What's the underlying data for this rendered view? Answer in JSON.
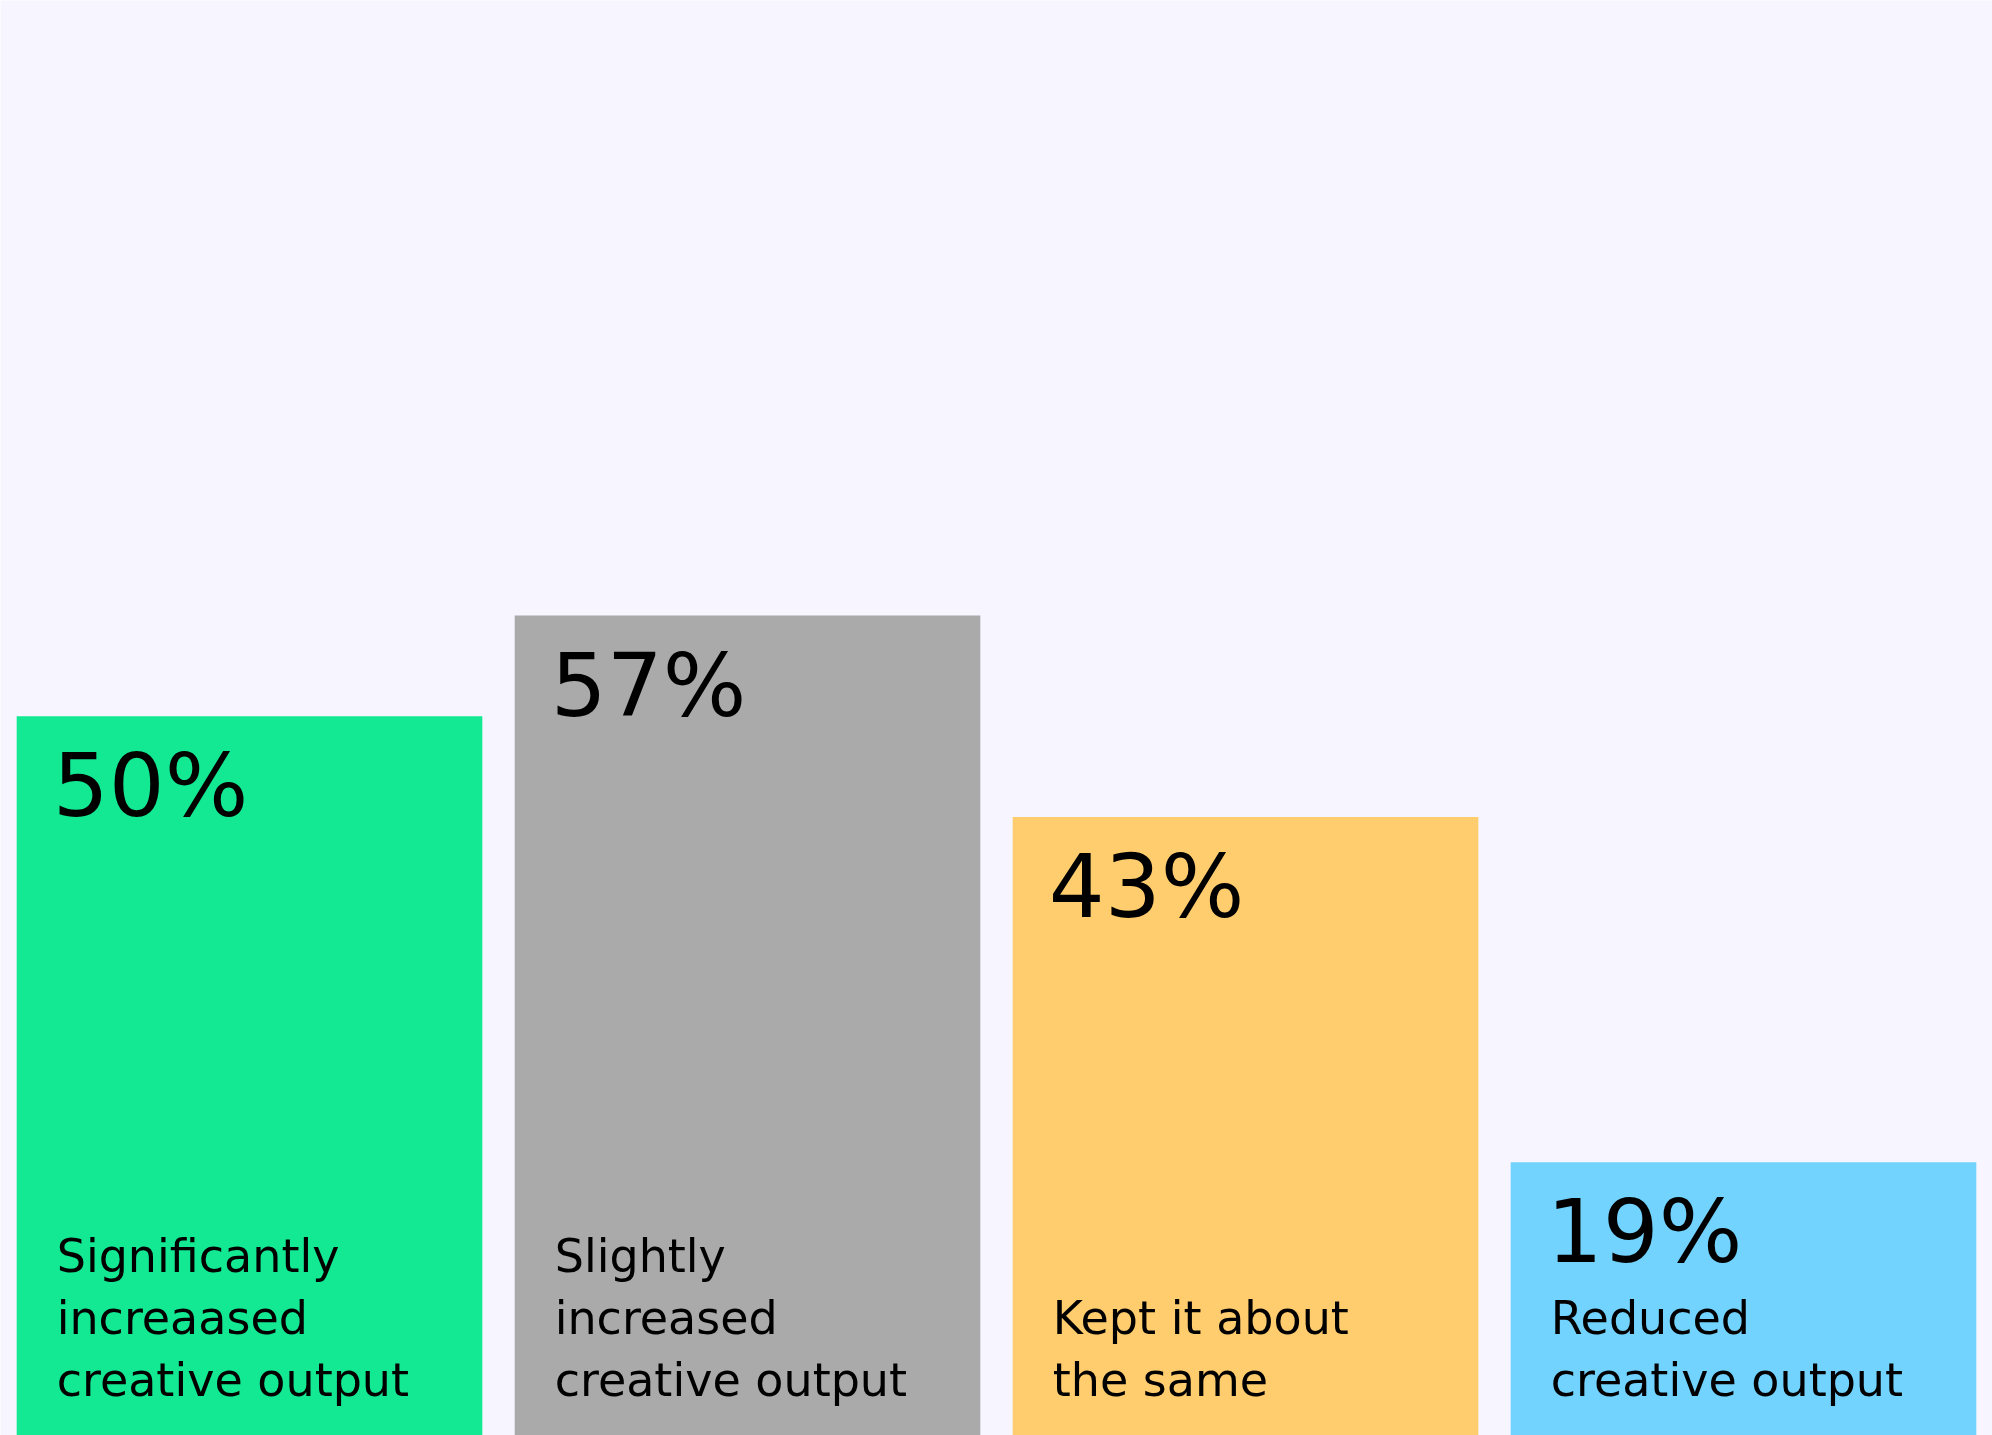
{
  "chart_data": {
    "type": "bar",
    "categories": [
      "Significantly increaased creative output",
      "Slightly increased creative output",
      "Kept it about the same",
      "Reduced creative output"
    ],
    "values": [
      50,
      57,
      43,
      19
    ],
    "value_labels": [
      "50%",
      "57%",
      "43%",
      "19%"
    ],
    "colors": [
      "#13e892",
      "#aaaaaa",
      "#ffcc6e",
      "#72d3fe"
    ]
  }
}
